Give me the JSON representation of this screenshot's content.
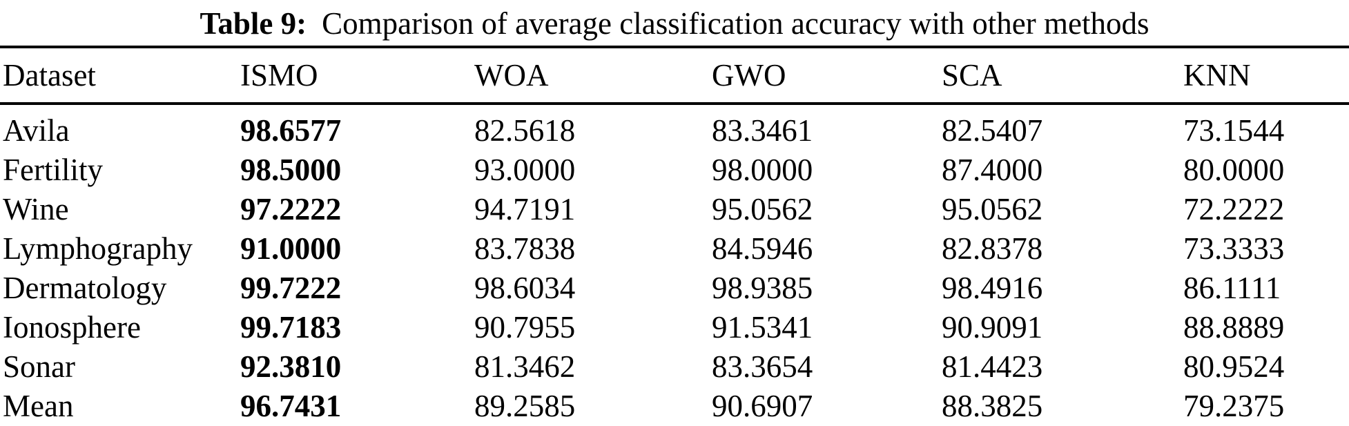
{
  "title": {
    "label": "Table 9:",
    "text": "Comparison of average classification accuracy with other methods"
  },
  "table": {
    "columns": [
      "Dataset",
      "ISMO",
      "WOA",
      "GWO",
      "SCA",
      "KNN"
    ],
    "bold_column": "ISMO",
    "rows": [
      {
        "dataset": "Avila",
        "values": [
          "98.6577",
          "82.5618",
          "83.3461",
          "82.5407",
          "73.1544"
        ]
      },
      {
        "dataset": "Fertility",
        "values": [
          "98.5000",
          "93.0000",
          "98.0000",
          "87.4000",
          "80.0000"
        ]
      },
      {
        "dataset": "Wine",
        "values": [
          "97.2222",
          "94.7191",
          "95.0562",
          "95.0562",
          "72.2222"
        ]
      },
      {
        "dataset": "Lymphography",
        "values": [
          "91.0000",
          "83.7838",
          "84.5946",
          "82.8378",
          "73.3333"
        ]
      },
      {
        "dataset": "Dermatology",
        "values": [
          "99.7222",
          "98.6034",
          "98.9385",
          "98.4916",
          "86.1111"
        ]
      },
      {
        "dataset": "Ionosphere",
        "values": [
          "99.7183",
          "90.7955",
          "91.5341",
          "90.9091",
          "88.8889"
        ]
      },
      {
        "dataset": "Sonar",
        "values": [
          "92.3810",
          "81.3462",
          "83.3654",
          "81.4423",
          "80.9524"
        ]
      },
      {
        "dataset": "Mean",
        "values": [
          "96.7431",
          "89.2585",
          "90.6907",
          "88.3825",
          "79.2375"
        ]
      }
    ]
  },
  "colors": {
    "background": "#ffffff",
    "text": "#000000",
    "rule": "#000000"
  }
}
